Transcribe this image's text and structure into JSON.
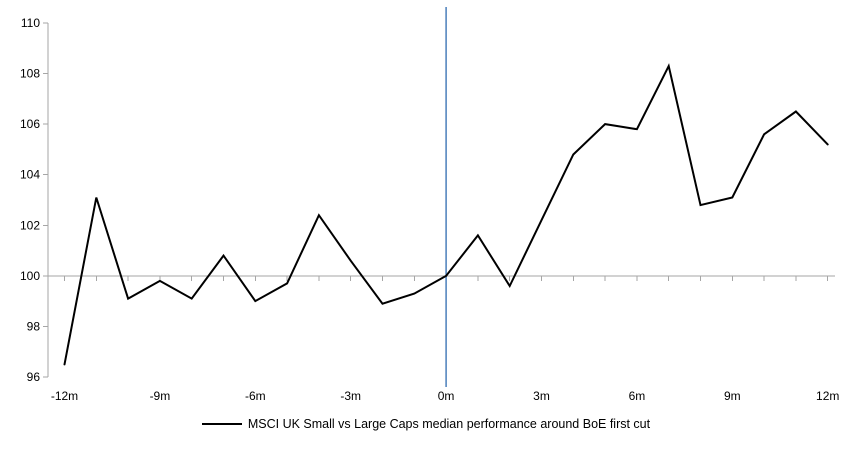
{
  "chart_data": {
    "type": "line",
    "title": "",
    "xlabel": "",
    "ylabel": "",
    "x": [
      -12,
      -11,
      -10,
      -9,
      -8,
      -7,
      -6,
      -5,
      -4,
      -3,
      -2,
      -1,
      0,
      1,
      2,
      3,
      4,
      5,
      6,
      7,
      8,
      9,
      10,
      11,
      12
    ],
    "series": [
      {
        "name": "MSCI UK Small vs Large Caps median performance around BoE first cut",
        "color": "#000000",
        "values": [
          96.5,
          103.1,
          99.1,
          99.8,
          99.1,
          100.8,
          99.0,
          99.7,
          102.4,
          100.6,
          98.9,
          99.3,
          100.0,
          101.6,
          99.6,
          102.2,
          104.8,
          106.0,
          105.8,
          108.3,
          102.8,
          103.1,
          105.6,
          106.5,
          105.2
        ]
      }
    ],
    "ylim": [
      96,
      110
    ],
    "yticks": [
      96,
      98,
      100,
      102,
      104,
      106,
      108,
      110
    ],
    "xticks": {
      "positions": [
        -12,
        -9,
        -6,
        -3,
        0,
        3,
        6,
        9,
        12
      ],
      "labels": [
        "-12m",
        "-9m",
        "-6m",
        "-3m",
        "0m",
        "3m",
        "6m",
        "9m",
        "12m"
      ]
    },
    "x_axis_crosses_at": 100,
    "event_line": {
      "x": 0,
      "color": "#4A7EBB"
    },
    "axis_color": "#A6A6A6",
    "grid": false,
    "legend_position": "bottom"
  }
}
